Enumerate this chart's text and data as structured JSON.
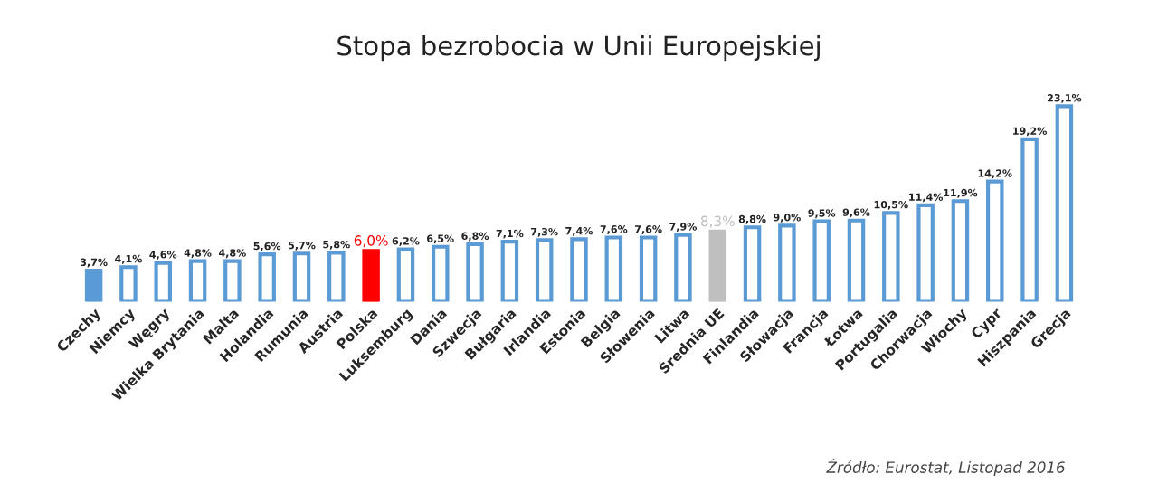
{
  "chart_data": {
    "type": "bar",
    "title": "Stopa bezrobocia w Unii Europejskiej",
    "categories": [
      "Czechy",
      "Niemcy",
      "Węgry",
      "Wielka Brytania",
      "Malta",
      "Holandia",
      "Rumunia",
      "Austria",
      "Polska",
      "Luksemburg",
      "Dania",
      "Szwecja",
      "Bułgaria",
      "Irlandia",
      "Estonia",
      "Belgia",
      "Słowenia",
      "Litwa",
      "Średnia UE",
      "Finlandia",
      "Słowacja",
      "Francja",
      "Łotwa",
      "Portugalia",
      "Chorwacja",
      "Włochy",
      "Cypr",
      "Hiszpania",
      "Grecja"
    ],
    "values": [
      3.7,
      4.1,
      4.6,
      4.8,
      4.8,
      5.6,
      5.7,
      5.8,
      6.0,
      6.2,
      6.5,
      6.8,
      7.1,
      7.3,
      7.4,
      7.6,
      7.6,
      7.9,
      8.3,
      8.8,
      9.0,
      9.5,
      9.6,
      10.5,
      11.4,
      11.9,
      14.2,
      19.2,
      23.1
    ],
    "value_labels": [
      "3,7%",
      "4,1%",
      "4,6%",
      "4,8%",
      "4,8%",
      "5,6%",
      "5,7%",
      "5,8%",
      "6,0%",
      "6,2%",
      "6,5%",
      "6,8%",
      "7,1%",
      "7,3%",
      "7,4%",
      "7,6%",
      "7,6%",
      "7,9%",
      "8,3%",
      "8,8%",
      "9,0%",
      "9,5%",
      "9,6%",
      "10,5%",
      "11,4%",
      "11,9%",
      "14,2%",
      "19,2%",
      "23,1%"
    ],
    "colors": [
      "#5b9bd5",
      "#5b9bd5",
      "#5b9bd5",
      "#5b9bd5",
      "#5b9bd5",
      "#5b9bd5",
      "#5b9bd5",
      "#5b9bd5",
      "#ff0000",
      "#5b9bd5",
      "#5b9bd5",
      "#5b9bd5",
      "#5b9bd5",
      "#5b9bd5",
      "#5b9bd5",
      "#5b9bd5",
      "#5b9bd5",
      "#5b9bd5",
      "#bfbfbf",
      "#5b9bd5",
      "#5b9bd5",
      "#5b9bd5",
      "#5b9bd5",
      "#5b9bd5",
      "#5b9bd5",
      "#5b9bd5",
      "#5b9bd5",
      "#5b9bd5",
      "#5b9bd5"
    ],
    "annotations": [
      "Źródło: Eurostat, Listopad 2016"
    ]
  }
}
